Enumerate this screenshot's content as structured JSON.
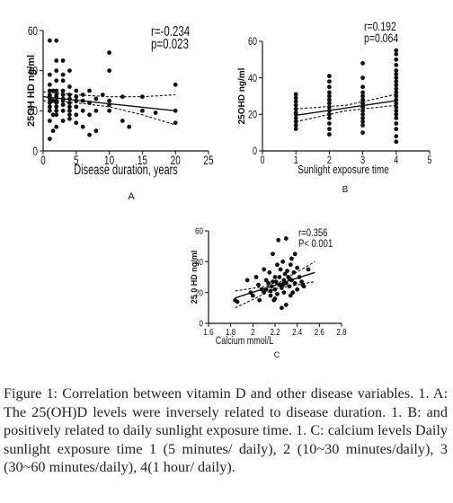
{
  "chart_data": [
    {
      "type": "scatter",
      "panel_label": "A",
      "xlabel": "Disease duration, years",
      "ylabel": "25OH HD ng/ml",
      "xlim": [
        0,
        25
      ],
      "ylim": [
        0,
        60
      ],
      "xticks": [
        0,
        5,
        10,
        15,
        20,
        25
      ],
      "yticks": [
        0,
        20,
        40,
        60
      ],
      "stats": [
        "r=-0.234",
        "p=0.023"
      ],
      "fit": {
        "x": [
          0,
          20
        ],
        "y": [
          27,
          20
        ]
      },
      "ci_lower": {
        "x": [
          0,
          5,
          10,
          15,
          20
        ],
        "y": [
          25,
          24,
          22,
          18,
          13
        ]
      },
      "ci_upper": {
        "x": [
          0,
          5,
          10,
          15,
          20
        ],
        "y": [
          29.5,
          28,
          27,
          27,
          28
        ]
      },
      "points": {
        "x": [
          1,
          1,
          1,
          1,
          1,
          1,
          1,
          1,
          1,
          1,
          1,
          1,
          1.5,
          1.5,
          1.5,
          1.5,
          2,
          2,
          2,
          2,
          2,
          2,
          2,
          2,
          2,
          2,
          2,
          2,
          2,
          3,
          3,
          3,
          3,
          3,
          3,
          3,
          3,
          3,
          3,
          4,
          4,
          4,
          4,
          4,
          4,
          4,
          4,
          4,
          5,
          5,
          5,
          5,
          5,
          5,
          6,
          6,
          6,
          6,
          7,
          7,
          7,
          7,
          8,
          8,
          8,
          9,
          10,
          10,
          10,
          10,
          10,
          12,
          12,
          13,
          15,
          15,
          17,
          20,
          20,
          20
        ],
        "y": [
          55,
          38,
          33,
          30,
          28,
          27,
          26,
          24,
          22,
          20,
          15,
          6,
          30,
          25,
          18,
          10,
          55,
          45,
          40,
          35,
          30,
          28,
          27,
          25,
          24,
          22,
          20,
          18,
          12,
          45,
          38,
          35,
          30,
          28,
          26,
          25,
          23,
          20,
          15,
          40,
          32,
          28,
          26,
          24,
          22,
          20,
          18,
          16,
          30,
          27,
          25,
          22,
          18,
          14,
          28,
          25,
          20,
          12,
          30,
          24,
          18,
          8,
          26,
          20,
          10,
          28,
          49,
          40,
          25,
          23,
          20,
          27,
          15,
          12,
          20,
          27,
          19,
          33,
          20,
          14
        ]
      }
    },
    {
      "type": "scatter",
      "panel_label": "B",
      "xlabel": "Sunlight exposure time",
      "ylabel": "25OHD ng/ml",
      "xlim": [
        0,
        5
      ],
      "ylim": [
        0,
        60
      ],
      "xticks": [
        0,
        1,
        2,
        3,
        4,
        5
      ],
      "yticks": [
        0,
        20,
        40,
        60
      ],
      "stats": [
        "r=0.192",
        "p=0.064"
      ],
      "fit": {
        "x": [
          1,
          4
        ],
        "y": [
          19.5,
          27.5
        ]
      },
      "ci_lower": {
        "x": [
          1,
          2.5,
          4
        ],
        "y": [
          16,
          22,
          25
        ]
      },
      "ci_upper": {
        "x": [
          1,
          2.5,
          4
        ],
        "y": [
          23,
          25,
          31
        ]
      },
      "points": {
        "x": [
          1,
          1,
          1,
          1,
          1,
          1,
          1,
          1,
          1,
          1,
          1,
          2,
          2,
          2,
          2,
          2,
          2,
          2,
          2,
          2,
          2,
          2,
          2,
          2,
          2,
          3,
          3,
          3,
          3,
          3,
          3,
          3,
          3,
          3,
          3,
          3,
          3,
          3,
          3,
          4,
          4,
          4,
          4,
          4,
          4,
          4,
          4,
          4,
          4,
          4,
          4,
          4,
          4,
          4,
          4,
          4,
          4,
          4,
          4,
          4,
          4
        ],
        "y": [
          31,
          29,
          27,
          25,
          23,
          21,
          20,
          18,
          16,
          14,
          12,
          41,
          38,
          35,
          32,
          30,
          28,
          26,
          24,
          22,
          20,
          18,
          15,
          12,
          9,
          48,
          40,
          35,
          32,
          30,
          28,
          26,
          24,
          22,
          20,
          18,
          16,
          14,
          10,
          55,
          53,
          50,
          47,
          44,
          42,
          40,
          38,
          36,
          34,
          32,
          30,
          28,
          26,
          24,
          22,
          20,
          18,
          15,
          12,
          8,
          5
        ]
      }
    },
    {
      "type": "scatter",
      "panel_label": "C",
      "xlabel": "Calcium mmol/L",
      "ylabel": "25 0 HD ng/ml",
      "xlim": [
        1.6,
        2.8
      ],
      "ylim": [
        0,
        60
      ],
      "xticks": [
        1.6,
        1.8,
        2.0,
        2.2,
        2.4,
        2.6,
        2.8
      ],
      "yticks": [
        0,
        20,
        40,
        60
      ],
      "stats": [
        "r=0.356",
        "P< 0.001"
      ],
      "fit": {
        "x": [
          1.84,
          2.56
        ],
        "y": [
          16.5,
          33
        ]
      },
      "ci_lower": {
        "x": [
          1.84,
          2.2,
          2.56
        ],
        "y": [
          10,
          22.5,
          27
        ]
      },
      "ci_upper": {
        "x": [
          1.84,
          2.2,
          2.56
        ],
        "y": [
          21,
          25,
          40
        ]
      },
      "points": {
        "x": [
          1.84,
          1.86,
          1.95,
          1.98,
          2.0,
          2.03,
          2.05,
          2.08,
          2.1,
          2.1,
          2.12,
          2.14,
          2.15,
          2.16,
          2.17,
          2.18,
          2.19,
          2.2,
          2.2,
          2.21,
          2.22,
          2.22,
          2.23,
          2.24,
          2.25,
          2.26,
          2.27,
          2.28,
          2.28,
          2.29,
          2.3,
          2.3,
          2.31,
          2.32,
          2.33,
          2.34,
          2.35,
          2.35,
          2.36,
          2.37,
          2.38,
          2.4,
          2.4,
          2.42,
          2.44,
          2.46,
          2.5,
          2.26,
          2.3,
          2.18,
          2.12,
          2.06,
          2.38,
          2.33,
          2.27,
          2.24,
          2.2,
          2.16,
          2.34,
          2.45
        ],
        "y": [
          15,
          14,
          28,
          20,
          18,
          30,
          25,
          22,
          35,
          20,
          28,
          26,
          33,
          18,
          24,
          45,
          15,
          30,
          22,
          27,
          19,
          38,
          54,
          25,
          35,
          23,
          40,
          28,
          20,
          32,
          55,
          26,
          34,
          30,
          24,
          38,
          42,
          28,
          20,
          33,
          26,
          36,
          22,
          30,
          27,
          24,
          35,
          10,
          12,
          27,
          22,
          15,
          45,
          29,
          25,
          30,
          16,
          21,
          18,
          25
        ]
      }
    }
  ],
  "caption": "Figure 1: Correlation between vitamin D and other disease variables. 1. A: The 25(OH)D levels were inversely related to disease duration. 1. B: and positively related to daily sunlight exposure time. 1. C: calcium levels Daily sunlight exposure time 1 (5 minutes/ daily), 2 (10~30 minutes/daily), 3 (30~60 minutes/daily), 4(1 hour/ daily)."
}
